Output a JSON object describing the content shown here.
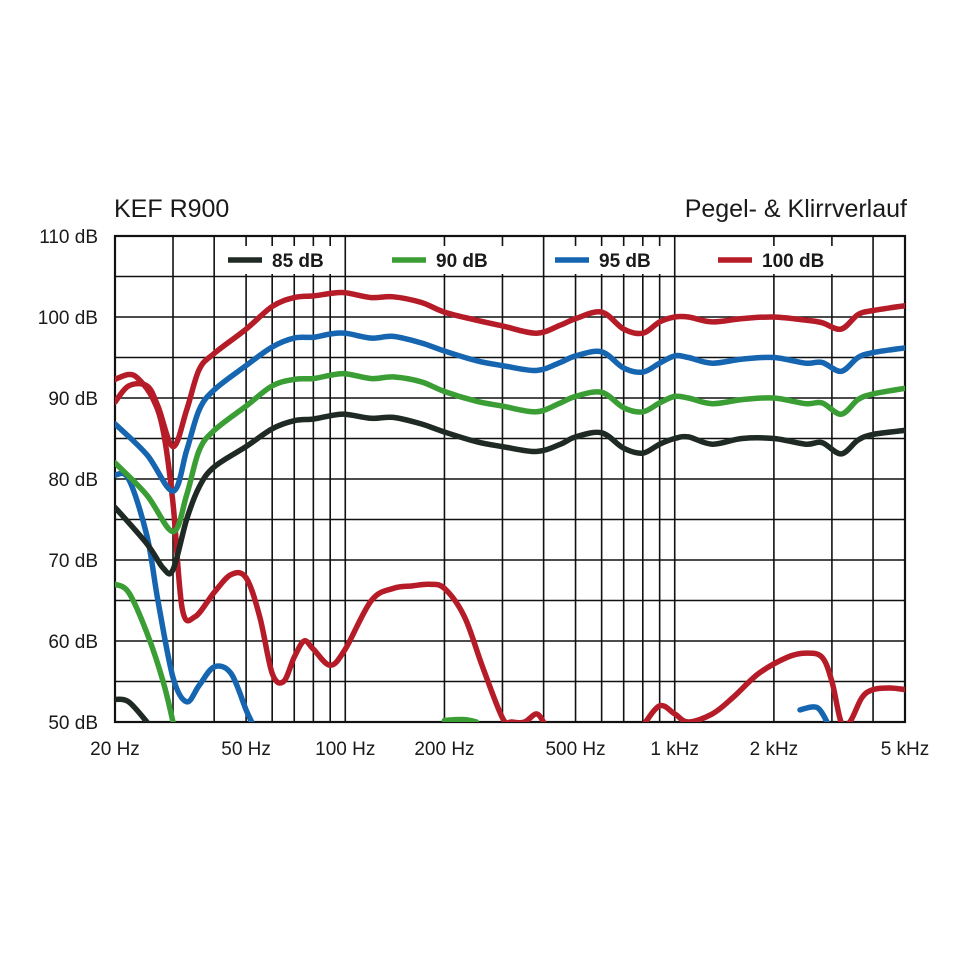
{
  "chart_data": {
    "type": "line",
    "title": "KEF R900",
    "subtitle": "Pegel- & Klirrverlauf",
    "xscale": "log",
    "xlim": [
      20,
      5000
    ],
    "ylim": [
      50,
      110
    ],
    "grid": true,
    "legend_position": "top",
    "y_ticks": [
      50,
      60,
      70,
      80,
      90,
      100,
      110
    ],
    "y_tick_labels": [
      "50 dB",
      "60 dB",
      "70 dB",
      "80 dB",
      "90 dB",
      "100 dB",
      "110 dB"
    ],
    "x_ticks": [
      20,
      50,
      100,
      200,
      500,
      1000,
      2000,
      5000
    ],
    "x_tick_labels": [
      "20 Hz",
      "50 Hz",
      "100 Hz",
      "200 Hz",
      "500 Hz",
      "1 kHz",
      "2 kHz",
      "5 kHz"
    ],
    "series": [
      {
        "name": "85 dB",
        "color": "#1f2a24",
        "level": [
          [
            20,
            76.5
          ],
          [
            25,
            72
          ],
          [
            28,
            69
          ],
          [
            30,
            68.8
          ],
          [
            33,
            75
          ],
          [
            36,
            79
          ],
          [
            40,
            81.5
          ],
          [
            50,
            84
          ],
          [
            60,
            86.2
          ],
          [
            70,
            87.2
          ],
          [
            80,
            87.4
          ],
          [
            90,
            87.8
          ],
          [
            100,
            88
          ],
          [
            120,
            87.5
          ],
          [
            140,
            87.6
          ],
          [
            170,
            86.8
          ],
          [
            200,
            85.8
          ],
          [
            250,
            84.6
          ],
          [
            300,
            84
          ],
          [
            380,
            83.4
          ],
          [
            450,
            84.3
          ],
          [
            500,
            85.2
          ],
          [
            600,
            85.7
          ],
          [
            700,
            83.8
          ],
          [
            800,
            83.2
          ],
          [
            900,
            84.3
          ],
          [
            1000,
            85
          ],
          [
            1100,
            85.2
          ],
          [
            1300,
            84.3
          ],
          [
            1600,
            85
          ],
          [
            2000,
            85
          ],
          [
            2500,
            84.3
          ],
          [
            2800,
            84.5
          ],
          [
            3200,
            83.1
          ],
          [
            3600,
            84.8
          ],
          [
            4000,
            85.5
          ],
          [
            5000,
            86
          ]
        ],
        "distortion": [
          [
            20,
            52.8
          ],
          [
            22,
            52.5
          ],
          [
            25,
            50
          ]
        ]
      },
      {
        "name": "90 dB",
        "color": "#3a9e35",
        "level": [
          [
            20,
            82
          ],
          [
            25,
            78
          ],
          [
            30,
            73.5
          ],
          [
            33,
            78
          ],
          [
            36,
            83.5
          ],
          [
            40,
            86
          ],
          [
            50,
            89
          ],
          [
            60,
            91.5
          ],
          [
            70,
            92.3
          ],
          [
            80,
            92.4
          ],
          [
            90,
            92.8
          ],
          [
            100,
            93
          ],
          [
            120,
            92.4
          ],
          [
            140,
            92.6
          ],
          [
            170,
            92
          ],
          [
            200,
            90.8
          ],
          [
            250,
            89.6
          ],
          [
            300,
            89
          ],
          [
            380,
            88.3
          ],
          [
            450,
            89.4
          ],
          [
            500,
            90.2
          ],
          [
            600,
            90.7
          ],
          [
            700,
            88.8
          ],
          [
            800,
            88.3
          ],
          [
            900,
            89.4
          ],
          [
            1000,
            90.2
          ],
          [
            1100,
            90
          ],
          [
            1300,
            89.3
          ],
          [
            1600,
            89.8
          ],
          [
            2000,
            90
          ],
          [
            2500,
            89.3
          ],
          [
            2800,
            89.4
          ],
          [
            3200,
            88
          ],
          [
            3600,
            89.8
          ],
          [
            4000,
            90.5
          ],
          [
            5000,
            91.2
          ]
        ],
        "distortion": [
          [
            20,
            67
          ],
          [
            22,
            66
          ],
          [
            25,
            61
          ],
          [
            28,
            55
          ],
          [
            30,
            50
          ]
        ]
      },
      {
        "name": "95 dB",
        "color": "#1565b0",
        "level": [
          [
            20,
            86.8
          ],
          [
            25,
            83
          ],
          [
            30,
            78.5
          ],
          [
            33,
            83.5
          ],
          [
            36,
            88.5
          ],
          [
            40,
            91
          ],
          [
            50,
            94
          ],
          [
            60,
            96.3
          ],
          [
            70,
            97.4
          ],
          [
            80,
            97.5
          ],
          [
            90,
            97.9
          ],
          [
            100,
            98
          ],
          [
            120,
            97.4
          ],
          [
            140,
            97.6
          ],
          [
            170,
            96.8
          ],
          [
            200,
            95.8
          ],
          [
            250,
            94.6
          ],
          [
            300,
            94
          ],
          [
            380,
            93.4
          ],
          [
            450,
            94.4
          ],
          [
            500,
            95.2
          ],
          [
            600,
            95.7
          ],
          [
            700,
            93.7
          ],
          [
            800,
            93.2
          ],
          [
            900,
            94.3
          ],
          [
            1000,
            95.2
          ],
          [
            1100,
            95
          ],
          [
            1300,
            94.3
          ],
          [
            1600,
            94.8
          ],
          [
            2000,
            95
          ],
          [
            2500,
            94.3
          ],
          [
            2800,
            94.4
          ],
          [
            3200,
            93.3
          ],
          [
            3600,
            95
          ],
          [
            4000,
            95.6
          ],
          [
            5000,
            96.2
          ]
        ],
        "distortion": [
          [
            20,
            80.5
          ],
          [
            22,
            80
          ],
          [
            25,
            73
          ],
          [
            27,
            65
          ],
          [
            30,
            55.5
          ],
          [
            33,
            52.5
          ],
          [
            36,
            54.5
          ],
          [
            40,
            56.8
          ],
          [
            45,
            56
          ],
          [
            50,
            51.5
          ],
          [
            52,
            50
          ]
        ]
      },
      {
        "name": "100 dB",
        "color": "#b51c28",
        "level": [
          [
            20,
            89.5
          ],
          [
            22,
            91.5
          ],
          [
            25,
            91.5
          ],
          [
            27,
            89
          ],
          [
            30,
            84
          ],
          [
            33,
            88.5
          ],
          [
            36,
            93.5
          ],
          [
            40,
            95.5
          ],
          [
            50,
            98.5
          ],
          [
            60,
            101.3
          ],
          [
            70,
            102.4
          ],
          [
            80,
            102.6
          ],
          [
            90,
            102.9
          ],
          [
            100,
            103
          ],
          [
            120,
            102.4
          ],
          [
            140,
            102.5
          ],
          [
            170,
            101.8
          ],
          [
            200,
            100.6
          ],
          [
            250,
            99.6
          ],
          [
            300,
            98.9
          ],
          [
            380,
            98
          ],
          [
            450,
            99
          ],
          [
            500,
            99.8
          ],
          [
            600,
            100.6
          ],
          [
            700,
            98.5
          ],
          [
            800,
            98
          ],
          [
            900,
            99.4
          ],
          [
            1000,
            100
          ],
          [
            1100,
            100
          ],
          [
            1300,
            99.4
          ],
          [
            1600,
            99.8
          ],
          [
            2000,
            100
          ],
          [
            2500,
            99.6
          ],
          [
            2800,
            99.3
          ],
          [
            3200,
            98.5
          ],
          [
            3600,
            100.3
          ],
          [
            4000,
            100.8
          ],
          [
            5000,
            101.4
          ]
        ],
        "upper": [
          [
            20,
            92.3
          ],
          [
            22,
            92.9
          ],
          [
            23.5,
            92.4
          ],
          [
            26,
            90
          ],
          [
            28,
            86
          ],
          [
            30,
            77
          ],
          [
            32,
            64
          ],
          [
            35,
            63
          ],
          [
            40,
            66
          ],
          [
            45,
            68.2
          ],
          [
            50,
            67.8
          ],
          [
            55,
            63
          ],
          [
            60,
            56
          ],
          [
            65,
            55
          ],
          [
            70,
            58
          ],
          [
            75,
            60
          ],
          [
            80,
            59
          ],
          [
            90,
            57
          ],
          [
            100,
            59
          ],
          [
            120,
            65
          ],
          [
            140,
            66.5
          ],
          [
            160,
            66.8
          ],
          [
            180,
            67
          ],
          [
            200,
            66.5
          ],
          [
            230,
            63
          ],
          [
            260,
            57
          ],
          [
            300,
            50.5
          ],
          [
            320,
            50
          ],
          [
            350,
            50
          ],
          [
            380,
            51
          ],
          [
            400,
            50
          ]
        ]
      }
    ],
    "distortion_extra": {
      "red": [
        [
          800,
          49.5
        ],
        [
          900,
          52
        ],
        [
          1000,
          51
        ],
        [
          1100,
          50
        ],
        [
          1300,
          51
        ],
        [
          1500,
          53
        ],
        [
          1800,
          56
        ],
        [
          2200,
          58
        ],
        [
          2500,
          58.5
        ],
        [
          2800,
          58
        ],
        [
          3000,
          55
        ],
        [
          3200,
          50
        ],
        [
          3400,
          50
        ],
        [
          3700,
          53
        ],
        [
          4000,
          54
        ],
        [
          4500,
          54.2
        ],
        [
          5000,
          54
        ]
      ],
      "blue": [
        [
          2400,
          51.5
        ],
        [
          2700,
          51.8
        ],
        [
          2900,
          50
        ]
      ],
      "green": [
        [
          200,
          50.2
        ],
        [
          230,
          50.3
        ],
        [
          250,
          50
        ]
      ]
    }
  }
}
